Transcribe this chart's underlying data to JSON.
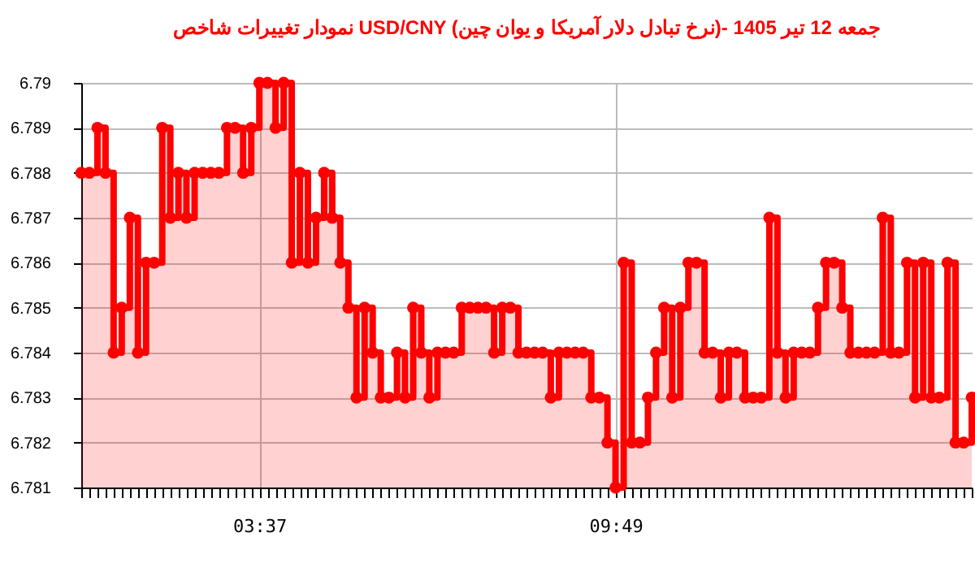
{
  "chart_data": {
    "type": "step",
    "title": "نمودار تغییرات شاخص USD/CNY (نرخ تبادل دلار آمریکا و یوان چین)- جمعه  12 تیر 1405",
    "categories": [
      null,
      null,
      null,
      null,
      null,
      null,
      null,
      null,
      null,
      null,
      null,
      null,
      null,
      null,
      null,
      null,
      null,
      null,
      null,
      null,
      null,
      null,
      "03:37",
      null,
      null,
      null,
      null,
      null,
      null,
      null,
      null,
      null,
      null,
      null,
      null,
      null,
      null,
      null,
      null,
      null,
      null,
      null,
      null,
      null,
      null,
      null,
      null,
      null,
      null,
      null,
      null,
      null,
      null,
      null,
      null,
      null,
      null,
      null,
      null,
      null,
      null,
      null,
      null,
      null,
      null,
      null,
      "09:49",
      null,
      null,
      null,
      null,
      null,
      null,
      null,
      null,
      null,
      null,
      null,
      null,
      null,
      null,
      null,
      null,
      null,
      null,
      null,
      null,
      null,
      null,
      null,
      null,
      null,
      null,
      null,
      null,
      null,
      null,
      null,
      null,
      null,
      null,
      null,
      null,
      null,
      null,
      null,
      null,
      null,
      null,
      null,
      null
    ],
    "series": [
      {
        "color": "#ff0000",
        "values": [
          6.788,
          6.788,
          6.789,
          6.788,
          6.784,
          6.785,
          6.787,
          6.784,
          6.786,
          6.786,
          6.789,
          6.787,
          6.788,
          6.787,
          6.788,
          6.788,
          6.788,
          6.788,
          6.789,
          6.789,
          6.788,
          6.789,
          6.79,
          6.79,
          6.789,
          6.79,
          6.786,
          6.788,
          6.786,
          6.787,
          6.788,
          6.787,
          6.786,
          6.785,
          6.783,
          6.785,
          6.784,
          6.783,
          6.783,
          6.784,
          6.783,
          6.785,
          6.784,
          6.783,
          6.784,
          6.784,
          6.784,
          6.785,
          6.785,
          6.785,
          6.785,
          6.784,
          6.785,
          6.785,
          6.784,
          6.784,
          6.784,
          6.784,
          6.783,
          6.784,
          6.784,
          6.784,
          6.784,
          6.783,
          6.783,
          6.782,
          6.781,
          6.786,
          6.782,
          6.782,
          6.783,
          6.784,
          6.785,
          6.783,
          6.785,
          6.786,
          6.786,
          6.784,
          6.784,
          6.783,
          6.784,
          6.784,
          6.783,
          6.783,
          6.783,
          6.787,
          6.784,
          6.783,
          6.784,
          6.784,
          6.784,
          6.785,
          6.786,
          6.786,
          6.785,
          6.784,
          6.784,
          6.784,
          6.784,
          6.787,
          6.784,
          6.784,
          6.786,
          6.783,
          6.786,
          6.783,
          6.783,
          6.786,
          6.782,
          6.782,
          6.783
        ]
      }
    ],
    "ylim": [
      6.781,
      6.79
    ],
    "yticks": [
      6.781,
      6.782,
      6.783,
      6.784,
      6.785,
      6.786,
      6.787,
      6.788,
      6.789,
      6.79
    ],
    "grid": true,
    "marker": "circle",
    "line_style": "solid"
  }
}
